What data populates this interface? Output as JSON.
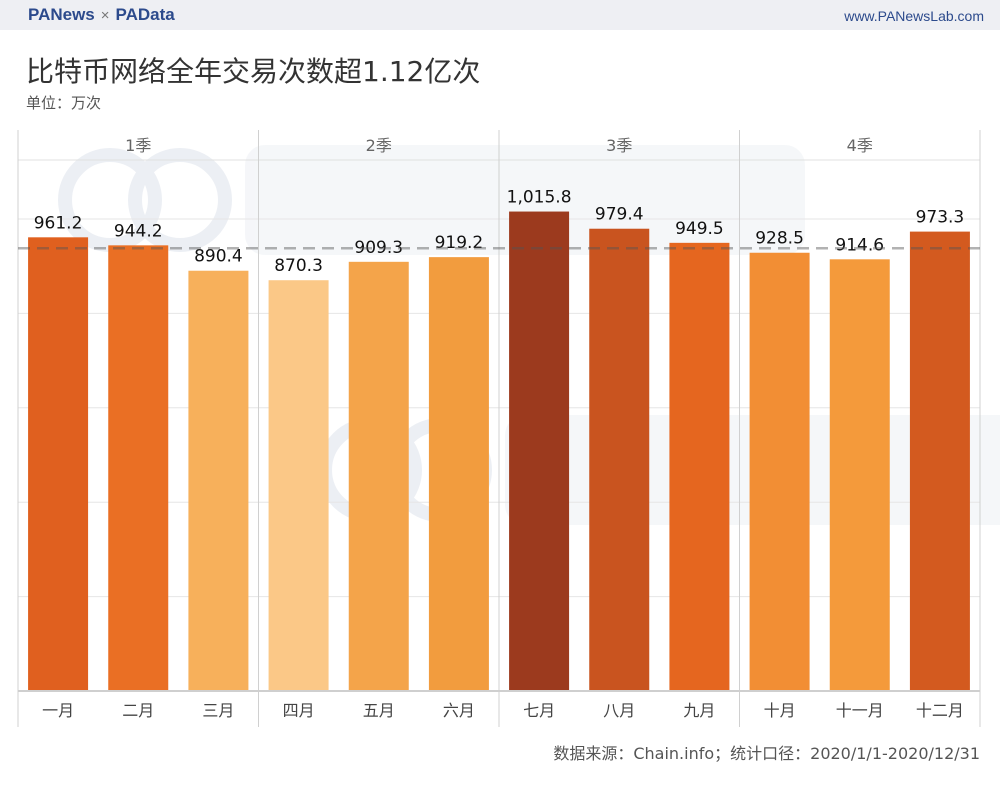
{
  "header": {
    "brand_left": "PANews",
    "separator": "×",
    "brand_right": "PAData",
    "site": "www.PANewsLab.com"
  },
  "title": "比特币网络全年交易次数超1.12亿次",
  "unit": "单位：万次",
  "source": "数据来源：Chain.info；统计口径：2020/1/1-2020/12/31",
  "watermarks": [
    "PANews",
    "PAData"
  ],
  "chart_data": {
    "type": "bar",
    "title": "比特币网络全年交易次数超1.12亿次",
    "ylabel": "单位：万次",
    "ylim": [
      0,
      1125
    ],
    "grid": true,
    "groups": [
      {
        "label": "1季",
        "size": 3
      },
      {
        "label": "2季",
        "size": 3
      },
      {
        "label": "3季",
        "size": 3
      },
      {
        "label": "4季",
        "size": 3
      }
    ],
    "categories": [
      "一月",
      "二月",
      "三月",
      "四月",
      "五月",
      "六月",
      "七月",
      "八月",
      "九月",
      "十月",
      "十一月",
      "十二月"
    ],
    "values": [
      961.2,
      944.2,
      890.4,
      870.3,
      909.3,
      919.2,
      1015.8,
      979.4,
      949.5,
      928.5,
      914.6,
      973.3
    ],
    "data_labels": [
      "961.2",
      "944.2",
      "890.4",
      "870.3",
      "909.3",
      "919.2",
      "1,015.8",
      "979.4",
      "949.5",
      "928.5",
      "914.6",
      "973.3"
    ],
    "colors": [
      "#e0601f",
      "#ea6f24",
      "#f7b05b",
      "#fbc887",
      "#f4a44a",
      "#f29c3e",
      "#9c3a1e",
      "#c9541f",
      "#e5661f",
      "#f28e34",
      "#f49a3b",
      "#d35a1f"
    ],
    "reference_line": {
      "kind": "average",
      "value": 938.0,
      "style": "dashed"
    }
  }
}
